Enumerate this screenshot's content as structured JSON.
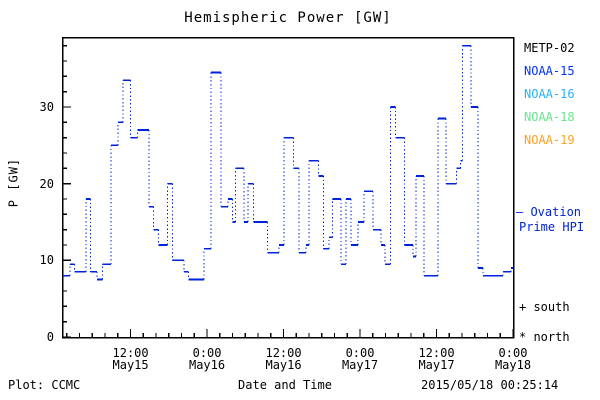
{
  "chart": {
    "title": "Hemispheric Power [GW]",
    "ylabel": "P [GW]",
    "xlabel": "Date and Time",
    "footer_left": "Plot: CCMC",
    "footer_right": "2015/05/18 00:25:14"
  },
  "legend": {
    "satellites": [
      {
        "label": "METP-02",
        "color": "#000000"
      },
      {
        "label": "NOAA-15",
        "color": "#0033ff"
      },
      {
        "label": "NOAA-16",
        "color": "#29b2ff"
      },
      {
        "label": "NOAA-18",
        "color": "#63e68c"
      },
      {
        "label": "NOAA-19",
        "color": "#ffa023"
      }
    ],
    "ovation": {
      "line1": "— Ovation",
      "line2": "Prime HPI",
      "color": "#0022dd"
    },
    "south": "+ south",
    "north": "* north"
  },
  "chart_data": {
    "type": "line",
    "style": "steps-post",
    "title": "Hemispheric Power [GW]",
    "xlabel": "Date and Time",
    "ylabel": "P [GW]",
    "series_name": "Ovation Prime HPI",
    "line_color": "#0022dd",
    "grid": false,
    "legend_position": "right",
    "x_unit": "hours since 2015-05-15 00:00 UT",
    "x_range": [
      1.4,
      72
    ],
    "ylim": [
      0,
      39
    ],
    "y_major_ticks": [
      0,
      10,
      20,
      30
    ],
    "y_minor_step": 2,
    "x_minor_step": 2,
    "x_major_ticks": [
      {
        "hour": 12,
        "time": "12:00",
        "date": "May15"
      },
      {
        "hour": 24,
        "time": "0:00",
        "date": "May16"
      },
      {
        "hour": 36,
        "time": "12:00",
        "date": "May16"
      },
      {
        "hour": 48,
        "time": "0:00",
        "date": "May17"
      },
      {
        "hour": 60,
        "time": "12:00",
        "date": "May17"
      },
      {
        "hour": 72,
        "time": "0:00",
        "date": "May18"
      }
    ],
    "end_hour": 72,
    "steps": [
      [
        1.4,
        8
      ],
      [
        2.5,
        9.5
      ],
      [
        3.2,
        8.5
      ],
      [
        5.0,
        18
      ],
      [
        5.7,
        8.5
      ],
      [
        6.7,
        7.5
      ],
      [
        7.6,
        9.5
      ],
      [
        8.9,
        25
      ],
      [
        10.0,
        28
      ],
      [
        10.8,
        33.5
      ],
      [
        12.0,
        26
      ],
      [
        13.1,
        27
      ],
      [
        14.9,
        17
      ],
      [
        15.6,
        14
      ],
      [
        16.4,
        12
      ],
      [
        17.8,
        20
      ],
      [
        18.6,
        10
      ],
      [
        20.4,
        8.5
      ],
      [
        21.1,
        7.5
      ],
      [
        23.5,
        11.5
      ],
      [
        24.6,
        34.5
      ],
      [
        26.2,
        17
      ],
      [
        27.3,
        18
      ],
      [
        28.0,
        15
      ],
      [
        28.5,
        22
      ],
      [
        29.8,
        15
      ],
      [
        30.4,
        20
      ],
      [
        31.3,
        15
      ],
      [
        33.5,
        11
      ],
      [
        35.3,
        12
      ],
      [
        36.1,
        26
      ],
      [
        37.6,
        22
      ],
      [
        38.4,
        11
      ],
      [
        39.5,
        12
      ],
      [
        40.0,
        23
      ],
      [
        41.5,
        21
      ],
      [
        42.3,
        11.5
      ],
      [
        43.1,
        13
      ],
      [
        43.7,
        18
      ],
      [
        45.0,
        9.5
      ],
      [
        45.8,
        18
      ],
      [
        46.6,
        12
      ],
      [
        47.7,
        15
      ],
      [
        48.6,
        19
      ],
      [
        50.0,
        14
      ],
      [
        51.3,
        12
      ],
      [
        51.9,
        9.5
      ],
      [
        52.8,
        30
      ],
      [
        53.6,
        26
      ],
      [
        55.0,
        12
      ],
      [
        56.3,
        10.5
      ],
      [
        56.8,
        21
      ],
      [
        58.0,
        8
      ],
      [
        60.2,
        28.5
      ],
      [
        61.5,
        20
      ],
      [
        63.1,
        22
      ],
      [
        63.8,
        23
      ],
      [
        64.1,
        38
      ],
      [
        65.4,
        30
      ],
      [
        66.5,
        9
      ],
      [
        67.3,
        8
      ],
      [
        70.4,
        8.5
      ],
      [
        71.7,
        9
      ]
    ]
  }
}
